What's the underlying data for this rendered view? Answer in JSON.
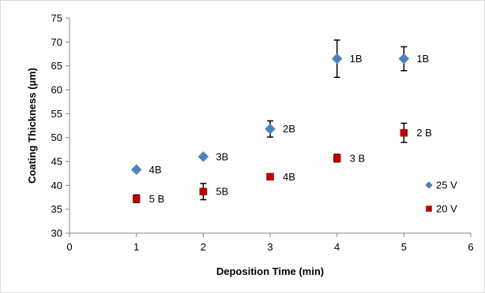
{
  "chart_data": {
    "type": "scatter",
    "xlabel": "Deposition Time (min)",
    "ylabel": "Coating Thickness  (µm)",
    "xlim": [
      0,
      6
    ],
    "ylim": [
      30,
      75
    ],
    "x_ticks": [
      0,
      1,
      2,
      3,
      4,
      5,
      6
    ],
    "y_ticks": [
      30,
      35,
      40,
      45,
      50,
      55,
      60,
      65,
      70,
      75
    ],
    "grid": false,
    "legend_position": "right",
    "series": [
      {
        "name": "25 V",
        "marker": "diamond",
        "color": "#4f81bd",
        "points": [
          {
            "x": 1,
            "y": 43.3,
            "err": 0,
            "label": "4B"
          },
          {
            "x": 2,
            "y": 46.0,
            "err": 0,
            "label": "3B"
          },
          {
            "x": 3,
            "y": 51.8,
            "err": 1.7,
            "label": "2B"
          },
          {
            "x": 4,
            "y": 66.5,
            "err": 3.9,
            "label": "1B"
          },
          {
            "x": 5,
            "y": 66.5,
            "err": 2.5,
            "label": "1B"
          }
        ]
      },
      {
        "name": "20 V",
        "marker": "square",
        "color": "#c00000",
        "points": [
          {
            "x": 1,
            "y": 37.2,
            "err": 0.8,
            "label": "5 B"
          },
          {
            "x": 2,
            "y": 38.7,
            "err": 1.7,
            "label": "5B"
          },
          {
            "x": 3,
            "y": 41.8,
            "err": 0,
            "label": "4B"
          },
          {
            "x": 4,
            "y": 45.7,
            "err": 0.8,
            "label": "3 B"
          },
          {
            "x": 5,
            "y": 51.0,
            "err": 2.0,
            "label": "2 B"
          }
        ]
      }
    ]
  }
}
